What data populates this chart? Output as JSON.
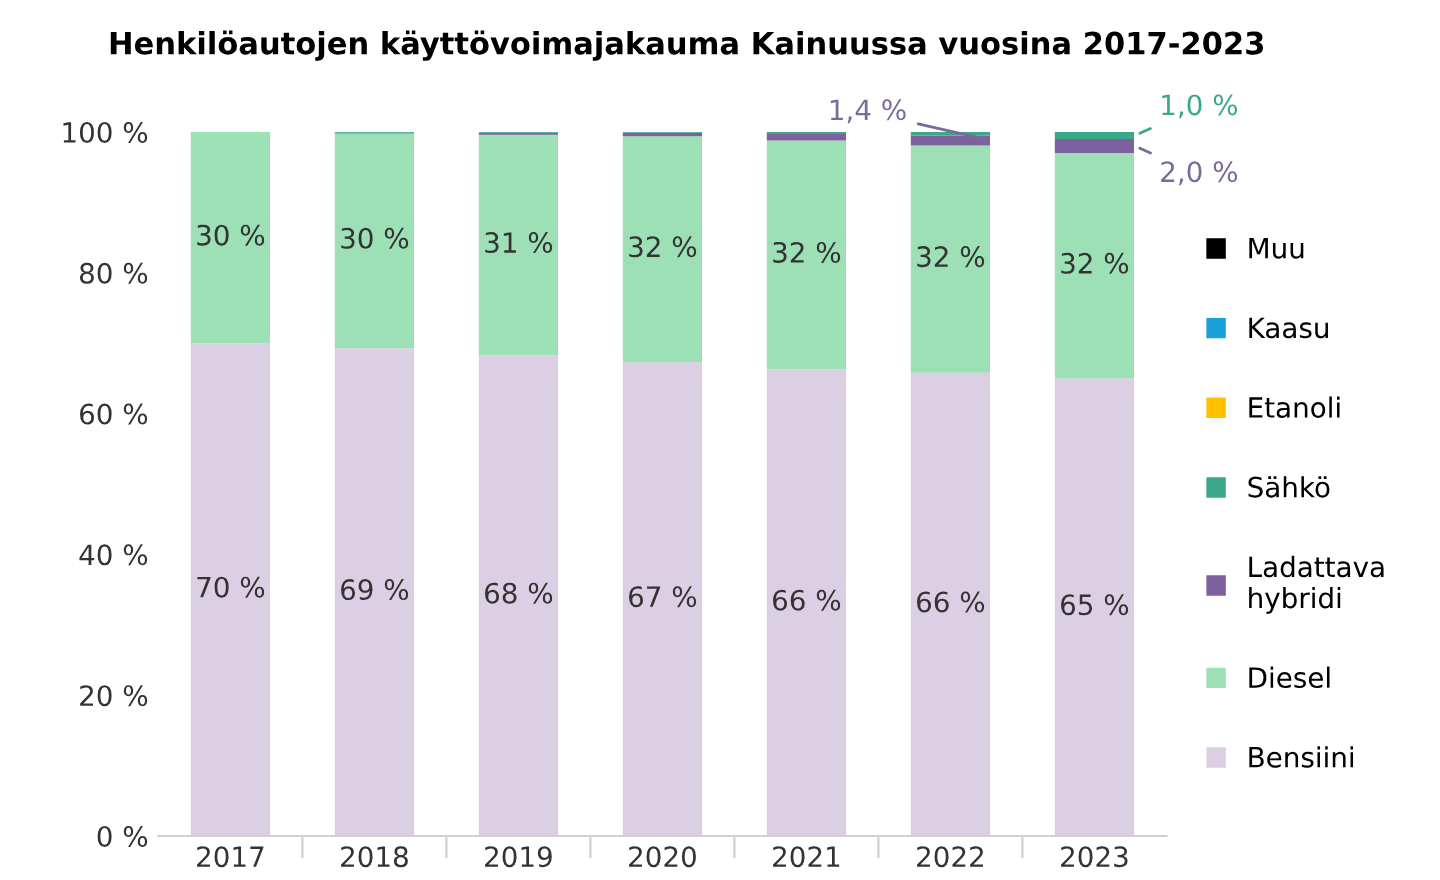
{
  "chart_data": {
    "type": "bar",
    "stacked": true,
    "title": "Henkilöautojen käyttövoimajakauma Kainuussa vuosina 2017-2023",
    "categories": [
      "2017",
      "2018",
      "2019",
      "2020",
      "2021",
      "2022",
      "2023"
    ],
    "series": [
      {
        "name": "Bensiini",
        "color": "#dccfe3",
        "values": [
          70,
          69.3,
          68.3,
          67.3,
          66.3,
          65.8,
          65
        ],
        "value_labels": [
          "70 %",
          "69 %",
          "68 %",
          "67 %",
          "66 %",
          "66 %",
          "65 %"
        ]
      },
      {
        "name": "Diesel",
        "color": "#9de0b5",
        "values": [
          30,
          30.5,
          31.3,
          32.1,
          32.5,
          32.3,
          32
        ],
        "value_labels": [
          "30 %",
          "30 %",
          "31 %",
          "32 %",
          "32 %",
          "32 %",
          "32 %"
        ]
      },
      {
        "name": "Ladattava hybridi",
        "color": "#7e609e",
        "values": [
          0,
          0.1,
          0.3,
          0.5,
          0.9,
          1.4,
          2.0
        ],
        "value_labels": [
          null,
          null,
          null,
          null,
          null,
          "1,4 %",
          "2,0 %"
        ]
      },
      {
        "name": "Sähkö",
        "color": "#3aa889",
        "values": [
          0,
          0.1,
          0.1,
          0.1,
          0.3,
          0.5,
          1.0
        ],
        "value_labels": [
          null,
          null,
          null,
          null,
          null,
          null,
          "1,0 %"
        ]
      },
      {
        "name": "Etanoli",
        "color": "#ffc000",
        "values": [
          0,
          0,
          0,
          0,
          0,
          0,
          0
        ]
      },
      {
        "name": "Kaasu",
        "color": "#1aa0d8",
        "values": [
          0,
          0,
          0,
          0,
          0,
          0,
          0
        ]
      },
      {
        "name": "Muu",
        "color": "#000000",
        "values": [
          0,
          0,
          0,
          0,
          0,
          0,
          0
        ]
      }
    ],
    "ylim": [
      0,
      100
    ],
    "yticks": [
      {
        "value": 0,
        "label": "0 %"
      },
      {
        "value": 20,
        "label": "20 %"
      },
      {
        "value": 40,
        "label": "40 %"
      },
      {
        "value": 60,
        "label": "60 %"
      },
      {
        "value": 80,
        "label": "80 %"
      },
      {
        "value": 100,
        "label": "100 %"
      }
    ],
    "grid": false,
    "legend": "right"
  }
}
